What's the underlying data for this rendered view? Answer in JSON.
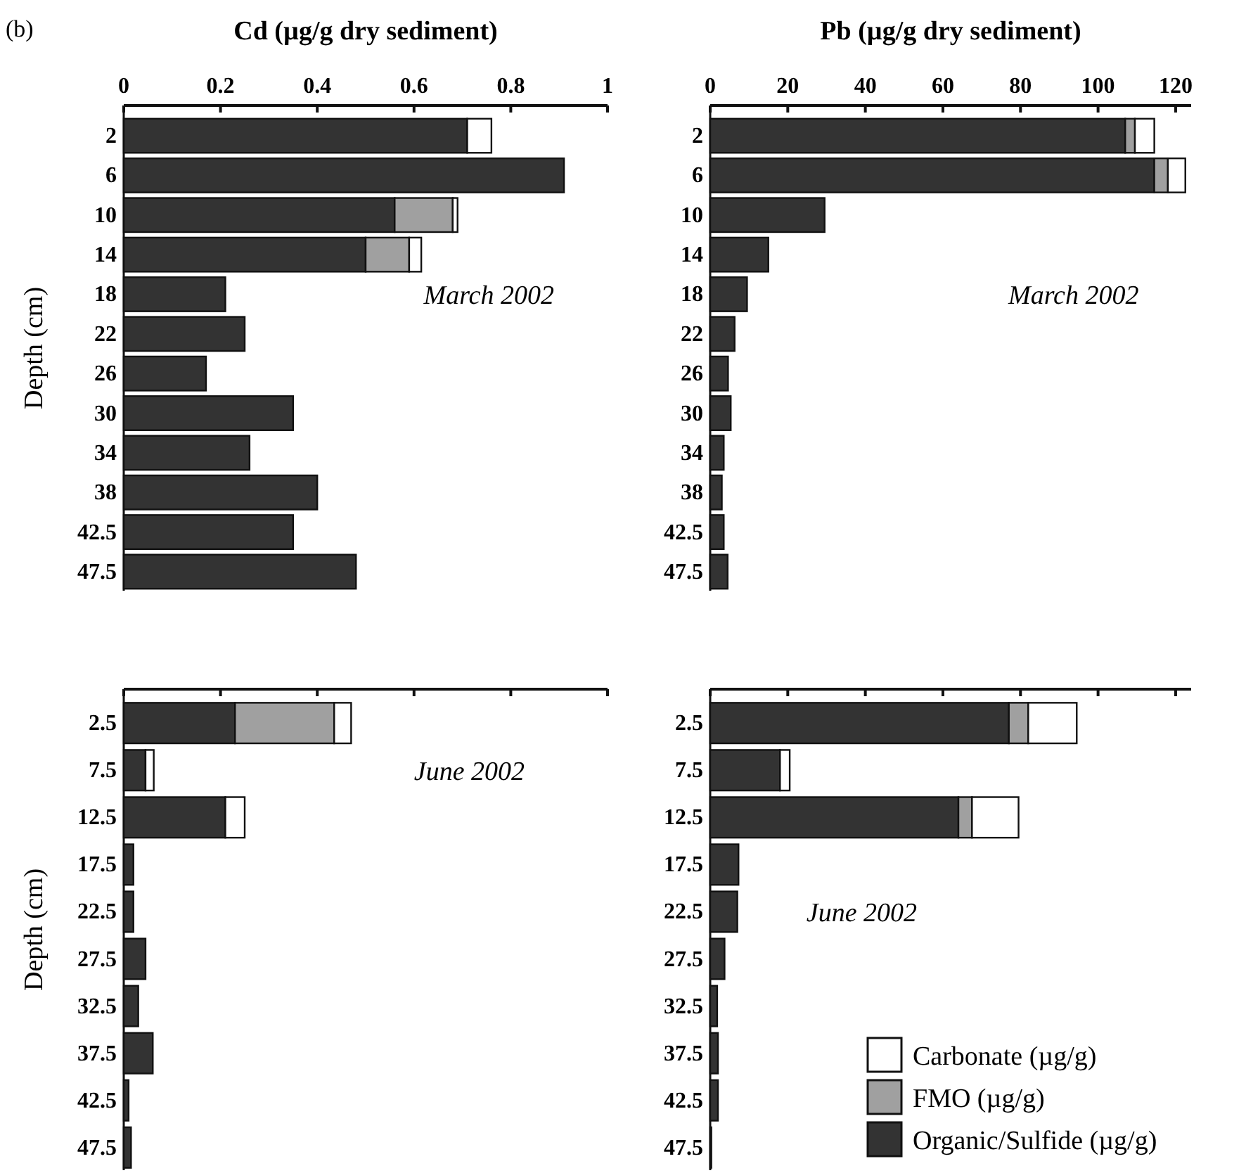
{
  "chart_data": [
    {
      "type": "bar",
      "orientation": "horizontal",
      "stacked": true,
      "title": "Cd (µg/g dry sediment)",
      "ylabel": "Depth (cm)",
      "annotations": [
        "(b)",
        "March 2002"
      ],
      "categories": [
        "2",
        "6",
        "10",
        "14",
        "18",
        "22",
        "26",
        "30",
        "34",
        "38",
        "42.5",
        "47.5"
      ],
      "xlim": [
        0,
        1
      ],
      "xticks": [
        0,
        0.2,
        0.4,
        0.6,
        0.8,
        1
      ],
      "legend": false,
      "series": [
        {
          "color": "#333333",
          "values": [
            0.71,
            0.91,
            0.56,
            0.5,
            0.21,
            0.25,
            0.17,
            0.35,
            0.26,
            0.4,
            0.35,
            0.48
          ]
        },
        {
          "color": "#a0a0a0",
          "values": [
            0,
            0,
            0.12,
            0.09,
            0,
            0,
            0,
            0,
            0,
            0,
            0,
            0
          ]
        },
        {
          "color": "#ffffff",
          "values": [
            0.05,
            0,
            0.01,
            0.025,
            0,
            0,
            0,
            0,
            0,
            0,
            0,
            0
          ]
        }
      ]
    },
    {
      "type": "bar",
      "orientation": "horizontal",
      "stacked": true,
      "title": "Pb (µg/g dry sediment)",
      "annotations": [
        "March 2002"
      ],
      "categories": [
        "2",
        "6",
        "10",
        "14",
        "18",
        "22",
        "26",
        "30",
        "34",
        "38",
        "42.5",
        "47.5"
      ],
      "xlim": [
        0,
        124
      ],
      "xticks": [
        0,
        20,
        40,
        60,
        80,
        100,
        120
      ],
      "legend": false,
      "series": [
        {
          "color": "#333333",
          "values": [
            107,
            114.5,
            29.5,
            15,
            9.5,
            6.3,
            4.6,
            5.3,
            3.5,
            3,
            3.5,
            4.5
          ]
        },
        {
          "color": "#a0a0a0",
          "values": [
            2.5,
            3.5,
            0,
            0,
            0,
            0,
            0,
            0,
            0,
            0,
            0,
            0
          ]
        },
        {
          "color": "#ffffff",
          "values": [
            5,
            4.5,
            0,
            0,
            0,
            0,
            0,
            0,
            0,
            0,
            0,
            0
          ]
        }
      ]
    },
    {
      "type": "bar",
      "orientation": "horizontal",
      "stacked": true,
      "ylabel": "Depth (cm)",
      "annotations": [
        "June 2002"
      ],
      "categories": [
        "2.5",
        "7.5",
        "12.5",
        "17.5",
        "22.5",
        "27.5",
        "32.5",
        "37.5",
        "42.5",
        "47.5"
      ],
      "xlim": [
        0,
        1
      ],
      "xticks": [
        0,
        0.2,
        0.4,
        0.6,
        0.8,
        1
      ],
      "tick_labels": "y",
      "legend": false,
      "series": [
        {
          "color": "#333333",
          "values": [
            0.23,
            0.045,
            0.21,
            0.02,
            0.02,
            0.045,
            0.03,
            0.06,
            0.01,
            0.015
          ]
        },
        {
          "color": "#a0a0a0",
          "values": [
            0.205,
            0,
            0,
            0,
            0,
            0,
            0,
            0,
            0,
            0
          ]
        },
        {
          "color": "#ffffff",
          "values": [
            0.035,
            0.017,
            0.04,
            0,
            0,
            0,
            0,
            0,
            0,
            0
          ]
        }
      ]
    },
    {
      "type": "bar",
      "orientation": "horizontal",
      "stacked": true,
      "annotations": [
        "June 2002"
      ],
      "categories": [
        "2.5",
        "7.5",
        "12.5",
        "17.5",
        "22.5",
        "27.5",
        "32.5",
        "37.5",
        "42.5",
        "47.5"
      ],
      "xlim": [
        0,
        124
      ],
      "xticks": [
        0,
        20,
        40,
        60,
        80,
        100,
        120
      ],
      "tick_labels": "y",
      "legend": "bottom right",
      "series": [
        {
          "name": "Organic/Sulfide (µg/g)",
          "color": "#333333",
          "values": [
            77,
            18,
            64,
            7.3,
            7,
            3.7,
            1.8,
            2,
            2,
            0.3
          ]
        },
        {
          "name": "FMO (µg/g)",
          "color": "#a0a0a0",
          "values": [
            5,
            0,
            3.5,
            0,
            0,
            0,
            0,
            0,
            0,
            0
          ]
        },
        {
          "name": "Carbonate (µg/g)",
          "color": "#ffffff",
          "values": [
            12.5,
            2.5,
            12,
            0,
            0,
            0,
            0,
            0,
            0,
            0
          ]
        }
      ]
    }
  ]
}
